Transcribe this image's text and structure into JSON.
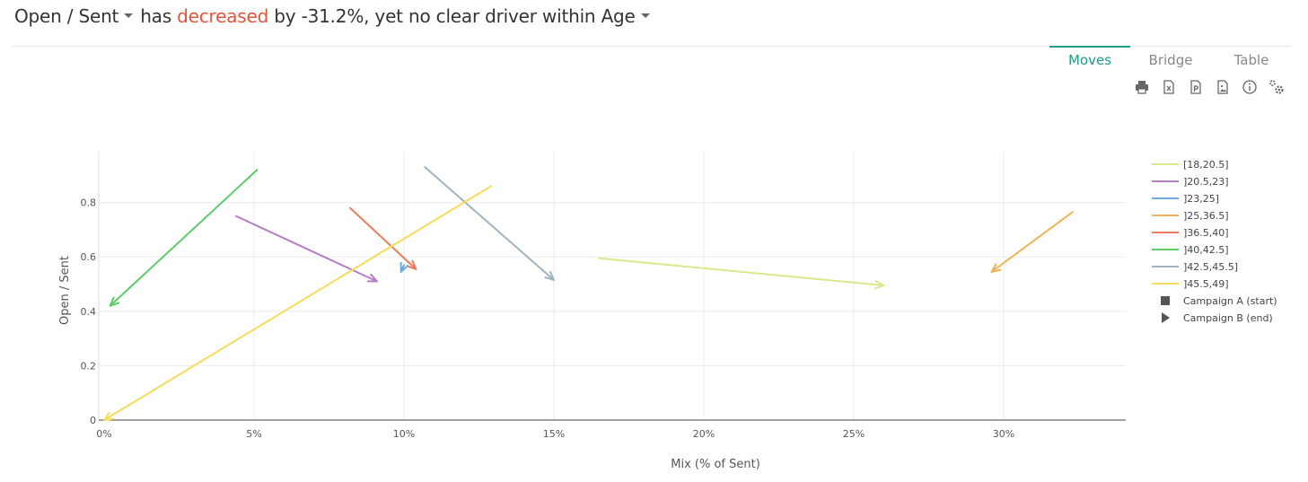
{
  "headline": {
    "metric": "Open / Sent",
    "pre": "has",
    "direction": "decreased",
    "post": "by -31.2%, yet no clear driver within",
    "dimension": "Age"
  },
  "tabs": [
    "Moves",
    "Bridge",
    "Table"
  ],
  "active_tab": "Moves",
  "toolbar": [
    "print-icon",
    "excel-export-icon",
    "powerpoint-export-icon",
    "image-export-icon",
    "info-icon",
    "settings-icon"
  ],
  "colors": {
    "accent": "#1f9c8a",
    "decrease": "#e0543b"
  },
  "chart_data": {
    "type": "scatter",
    "xlabel": "Mix (% of Sent)",
    "ylabel": "Open / Sent",
    "xlim": [
      0,
      0.34
    ],
    "ylim": [
      0,
      0.98
    ],
    "x_ticks": [
      {
        "v": 0,
        "label": "0%"
      },
      {
        "v": 0.05,
        "label": "5%"
      },
      {
        "v": 0.1,
        "label": "10%"
      },
      {
        "v": 0.15,
        "label": "15%"
      },
      {
        "v": 0.2,
        "label": "20%"
      },
      {
        "v": 0.25,
        "label": "25%"
      },
      {
        "v": 0.3,
        "label": "30%"
      }
    ],
    "y_ticks": [
      {
        "v": 0,
        "label": "0"
      },
      {
        "v": 0.2,
        "label": "0.2"
      },
      {
        "v": 0.4,
        "label": "0.4"
      },
      {
        "v": 0.6,
        "label": "0.6"
      },
      {
        "v": 0.8,
        "label": "0.8"
      }
    ],
    "grid": true,
    "legend_position": "right",
    "series": [
      {
        "name": "[18,20.5]",
        "color": "#dbe88a",
        "start": [
          0.165,
          0.595
        ],
        "end": [
          0.26,
          0.495
        ]
      },
      {
        "name": "]20.5,23]",
        "color": "#b57cc7",
        "start": [
          0.044,
          0.75
        ],
        "end": [
          0.091,
          0.51
        ]
      },
      {
        "name": "]23,25]",
        "color": "#6fa8e0",
        "start": [
          0.1,
          0.57
        ],
        "end": [
          0.099,
          0.545
        ]
      },
      {
        "name": "]25,36.5]",
        "color": "#f0b35a",
        "start": [
          0.323,
          0.765
        ],
        "end": [
          0.296,
          0.545
        ]
      },
      {
        "name": "]36.5,40]",
        "color": "#ec7a5c",
        "start": [
          0.082,
          0.78
        ],
        "end": [
          0.104,
          0.555
        ]
      },
      {
        "name": "]40,42.5]",
        "color": "#5ecb6b",
        "start": [
          0.051,
          0.92
        ],
        "end": [
          0.002,
          0.42
        ]
      },
      {
        "name": "]42.5,45.5]",
        "color": "#9fb3c0",
        "start": [
          0.107,
          0.93
        ],
        "end": [
          0.15,
          0.515
        ]
      },
      {
        "name": "]45.5,49]",
        "color": "#f5dc5a",
        "start": [
          0.129,
          0.86
        ],
        "end": [
          0.0,
          0.0
        ]
      }
    ],
    "markers": [
      {
        "name": "Campaign A (start)",
        "shape": "square"
      },
      {
        "name": "Campaign B (end)",
        "shape": "triangle"
      }
    ]
  }
}
